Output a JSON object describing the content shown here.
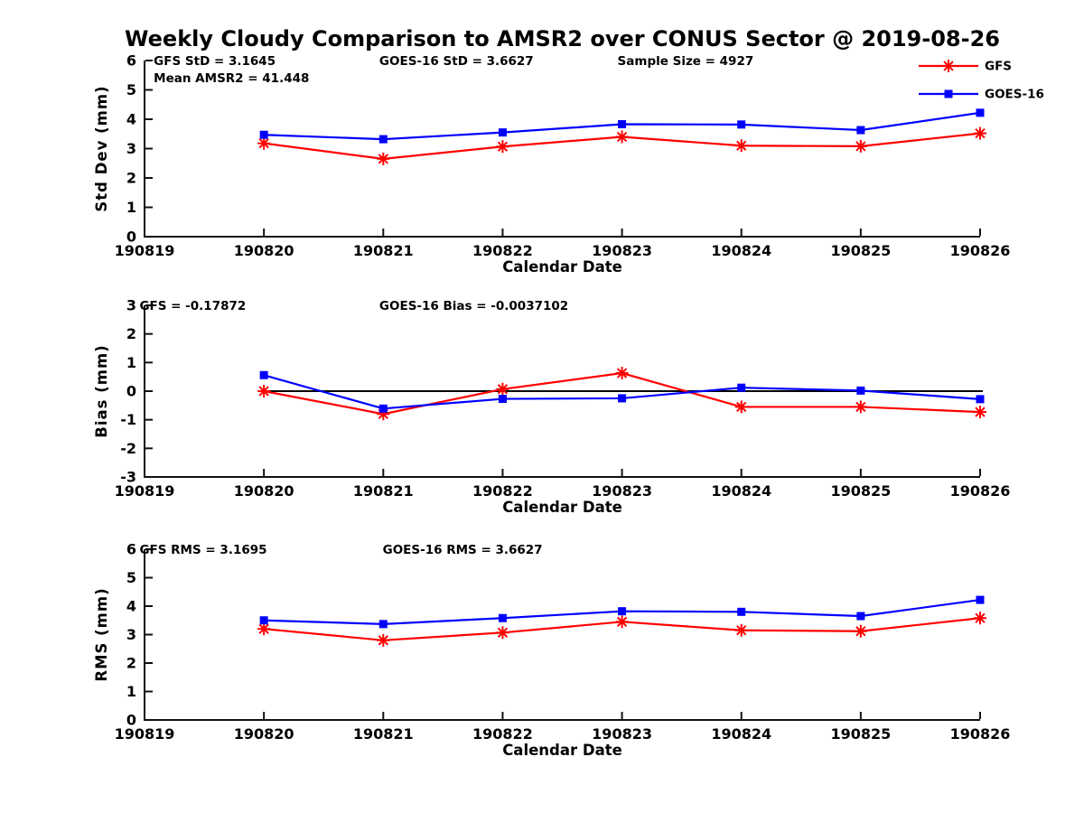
{
  "page": {
    "title": "Weekly Cloudy Comparison to AMSR2 over CONUS Sector @ 2019-08-26"
  },
  "colors": {
    "gfs": "#ff0000",
    "goes16": "#0000ff",
    "axis": "#111111",
    "zero_line": "#000000"
  },
  "legend": {
    "position": "top-right",
    "entries": [
      {
        "label": "GFS",
        "color": "#ff0000",
        "marker": "asterisk"
      },
      {
        "label": "GOES-16",
        "color": "#0000ff",
        "marker": "square"
      }
    ]
  },
  "chart_data": [
    {
      "type": "line",
      "name": "std-dev-panel",
      "ylabel": "Std Dev (mm)",
      "xlabel": "Calendar Date",
      "ylim": [
        0,
        6
      ],
      "ytick_step": 1,
      "grid": false,
      "categories": [
        "190819",
        "190820",
        "190821",
        "190822",
        "190823",
        "190824",
        "190825",
        "190826"
      ],
      "data_dates": [
        "190820",
        "190821",
        "190822",
        "190823",
        "190824",
        "190825",
        "190826"
      ],
      "annotations": [
        {
          "text": "GFS StD = 3.1645",
          "xf": 0.011,
          "line": 0
        },
        {
          "text": "Mean AMSR2 = 41.448",
          "xf": 0.011,
          "line": 1
        },
        {
          "text": "GOES-16 StD = 3.6627",
          "xf": 0.281,
          "line": 0
        },
        {
          "text": "Sample Size = 4927",
          "xf": 0.566,
          "line": 0
        }
      ],
      "zero_line": false,
      "series": [
        {
          "name": "GFS",
          "color": "#ff0000",
          "marker": "asterisk",
          "values": [
            3.18,
            2.65,
            3.07,
            3.4,
            3.1,
            3.08,
            3.52
          ]
        },
        {
          "name": "GOES-16",
          "color": "#0000ff",
          "marker": "square",
          "values": [
            3.47,
            3.32,
            3.55,
            3.83,
            3.82,
            3.63,
            4.22
          ]
        }
      ]
    },
    {
      "type": "line",
      "name": "bias-panel",
      "ylabel": "Bias (mm)",
      "xlabel": "Calendar Date",
      "ylim": [
        -3,
        3
      ],
      "ytick_step": 1,
      "grid": false,
      "categories": [
        "190819",
        "190820",
        "190821",
        "190822",
        "190823",
        "190824",
        "190825",
        "190826"
      ],
      "data_dates": [
        "190820",
        "190821",
        "190822",
        "190823",
        "190824",
        "190825",
        "190826"
      ],
      "annotations": [
        {
          "text": "GFS = -0.17872",
          "xf": -0.006,
          "line": 0
        },
        {
          "text": "GOES-16 Bias  = -0.0037102",
          "xf": 0.281,
          "line": 0
        }
      ],
      "zero_line": true,
      "series": [
        {
          "name": "GFS",
          "color": "#ff0000",
          "marker": "asterisk",
          "values": [
            0.0,
            -0.8,
            0.07,
            0.63,
            -0.55,
            -0.55,
            -0.73
          ]
        },
        {
          "name": "GOES-16",
          "color": "#0000ff",
          "marker": "square",
          "values": [
            0.56,
            -0.61,
            -0.27,
            -0.25,
            0.12,
            0.02,
            -0.28
          ]
        }
      ]
    },
    {
      "type": "line",
      "name": "rms-panel",
      "ylabel": "RMS (mm)",
      "xlabel": "Calendar Date",
      "ylim": [
        0,
        6
      ],
      "ytick_step": 1,
      "grid": false,
      "categories": [
        "190819",
        "190820",
        "190821",
        "190822",
        "190823",
        "190824",
        "190825",
        "190826"
      ],
      "data_dates": [
        "190820",
        "190821",
        "190822",
        "190823",
        "190824",
        "190825",
        "190826"
      ],
      "annotations": [
        {
          "text": "GFS RMS = 3.1695",
          "xf": -0.006,
          "line": 0
        },
        {
          "text": "GOES-16 RMS = 3.6627",
          "xf": 0.285,
          "line": 0
        }
      ],
      "zero_line": false,
      "series": [
        {
          "name": "GFS",
          "color": "#ff0000",
          "marker": "asterisk",
          "values": [
            3.2,
            2.8,
            3.07,
            3.45,
            3.15,
            3.12,
            3.58
          ]
        },
        {
          "name": "GOES-16",
          "color": "#0000ff",
          "marker": "square",
          "values": [
            3.5,
            3.37,
            3.58,
            3.82,
            3.8,
            3.65,
            4.22
          ]
        }
      ]
    }
  ]
}
